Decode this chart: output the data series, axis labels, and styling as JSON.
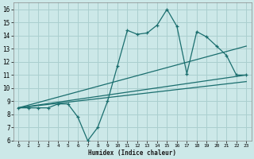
{
  "xlabel": "Humidex (Indice chaleur)",
  "bg_color": "#cce8e8",
  "grid_color": "#aacfcf",
  "line_color": "#1a6e6e",
  "xlim": [
    -0.5,
    23.5
  ],
  "ylim": [
    6.0,
    16.5
  ],
  "xticks": [
    0,
    1,
    2,
    3,
    4,
    5,
    6,
    7,
    8,
    9,
    10,
    11,
    12,
    13,
    14,
    15,
    16,
    17,
    18,
    19,
    20,
    21,
    22,
    23
  ],
  "yticks": [
    6,
    7,
    8,
    9,
    10,
    11,
    12,
    13,
    14,
    15,
    16
  ],
  "series1_x": [
    0,
    1,
    2,
    3,
    4,
    5,
    6,
    7,
    8,
    9,
    10,
    11,
    12,
    13,
    14,
    15,
    16,
    17,
    18,
    19,
    20,
    21,
    22,
    23
  ],
  "series1_y": [
    8.5,
    8.5,
    8.5,
    8.5,
    8.8,
    8.8,
    7.8,
    6.0,
    7.0,
    9.0,
    11.7,
    14.4,
    14.1,
    14.2,
    14.8,
    16.0,
    14.7,
    11.1,
    14.3,
    13.9,
    13.2,
    12.5,
    11.0,
    11.0
  ],
  "series2_x": [
    0,
    23
  ],
  "series2_y": [
    8.5,
    13.2
  ],
  "series3_x": [
    0,
    23
  ],
  "series3_y": [
    8.5,
    11.0
  ],
  "series4_x": [
    0,
    23
  ],
  "series4_y": [
    8.5,
    10.5
  ]
}
